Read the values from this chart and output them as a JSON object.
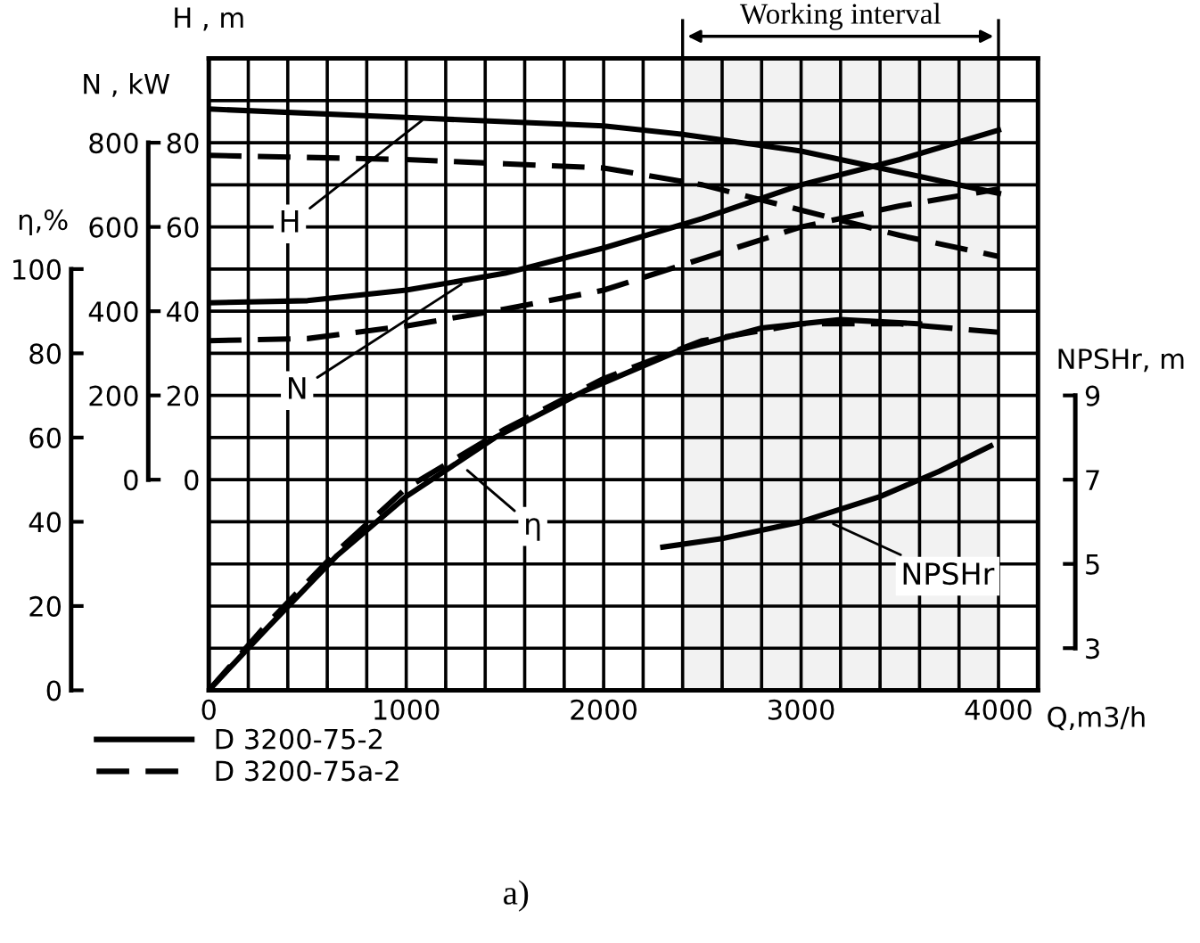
{
  "chart_data": [
    {
      "type": "line",
      "xlabel": "Q,m3/h",
      "ylabel": "H , m",
      "y2label": "N , kW",
      "y3label": "η,%",
      "xlim": [
        0,
        4200
      ],
      "xticks": [
        0,
        {
          "value": 200,
          "label": null
        },
        {
          "value": 400,
          "label": null
        },
        {
          "value": 600,
          "label": null
        },
        {
          "value": 800,
          "label": null
        },
        1000,
        {
          "value": 1200,
          "label": null
        },
        {
          "value": 1400,
          "label": null
        },
        {
          "value": 1600,
          "label": null
        },
        {
          "value": 1800,
          "label": null
        },
        2000,
        {
          "value": 2200,
          "label": null
        },
        {
          "value": 2400,
          "label": null
        },
        {
          "value": 2600,
          "label": null
        },
        {
          "value": 2800,
          "label": null
        },
        3000,
        {
          "value": 3200,
          "label": null
        },
        {
          "value": 3400,
          "label": null
        },
        {
          "value": 3600,
          "label": null
        },
        {
          "value": 3800,
          "label": null
        },
        4000
      ],
      "ylim": [
        -50,
        100
      ],
      "yticks": [
        {
          "value": -50,
          "label": null
        },
        {
          "value": -40,
          "label": null
        },
        {
          "value": -30,
          "label": null
        },
        {
          "value": -20,
          "label": null
        },
        {
          "value": -10,
          "label": null
        },
        0,
        {
          "value": 10,
          "label": null
        },
        20,
        {
          "value": 30,
          "label": null
        },
        40,
        {
          "value": 50,
          "label": null
        },
        60,
        {
          "value": 70,
          "label": null
        },
        80,
        {
          "value": 90,
          "label": null
        }
      ],
      "y2lim": [
        -500,
        1000
      ],
      "y2ticks": [
        0,
        200,
        400,
        600,
        800
      ],
      "y3lim": [
        0,
        150
      ],
      "y3ticks": [
        0,
        20,
        40,
        60,
        80,
        100
      ],
      "grid": true,
      "legend": "bottom left",
      "marker": "none",
      "series": [
        {
          "name": "D 3200-75-2",
          "color": "#000000",
          "line_style": "solid",
          "axis": "y",
          "x": [
            0,
            1000,
            2000,
            2400,
            3000,
            3500,
            4000
          ],
          "values": [
            88,
            86,
            84,
            82,
            78,
            73,
            68
          ]
        },
        {
          "name": "D 3200-75a-2",
          "color": "#000000",
          "line_style": "dashed",
          "axis": "y",
          "x": [
            0,
            1000,
            1500,
            2000,
            2500,
            3000,
            3500,
            4000
          ],
          "values": [
            77,
            76,
            75,
            74,
            70,
            64,
            58,
            53
          ]
        },
        {
          "color": "#000000",
          "line_style": "solid",
          "axis": "y2",
          "x": [
            0,
            500,
            1000,
            1500,
            2000,
            2500,
            3000,
            3500,
            4000
          ],
          "values": [
            420,
            425,
            450,
            490,
            550,
            620,
            700,
            760,
            830
          ]
        },
        {
          "color": "#000000",
          "line_style": "dashed",
          "axis": "y2",
          "x": [
            0,
            500,
            1000,
            1500,
            2000,
            2500,
            3000,
            3500,
            4000
          ],
          "values": [
            330,
            335,
            365,
            405,
            450,
            525,
            600,
            650,
            690
          ]
        },
        {
          "color": "#000000",
          "line_style": "solid",
          "axis": "y3",
          "x": [
            0,
            300,
            650,
            1000,
            1450,
            1900,
            2400,
            2800,
            3200,
            3600
          ],
          "values": [
            0,
            15,
            32,
            46,
            60,
            71,
            81,
            86,
            88,
            87
          ]
        },
        {
          "color": "#000000",
          "line_style": "dashed",
          "axis": "y3",
          "x": [
            0,
            300,
            650,
            1000,
            1500,
            2000,
            2500,
            3000,
            3500,
            4000
          ],
          "values": [
            0,
            16,
            33,
            48,
            62,
            74,
            83,
            87,
            87,
            85
          ]
        }
      ],
      "bands": [
        {
          "axis": "x",
          "from": 2400,
          "to": 4000,
          "label": "Working interval",
          "color": "#000000"
        }
      ],
      "annotations": [
        {
          "text": "H",
          "x": 1100,
          "y": 86
        },
        {
          "text": "N",
          "x": 1300,
          "y": 47
        },
        {
          "text": "η",
          "x": 1290,
          "y": 3
        },
        "a)"
      ]
    },
    {
      "type": "line",
      "ylabel": "NPSHr, m",
      "xlim": [
        0,
        4200
      ],
      "ylim": [
        2,
        17
      ],
      "yticks": [
        3,
        5,
        7,
        9
      ],
      "tick_labels": "y",
      "marker": "none",
      "series": [
        {
          "color": "#000000",
          "line_style": "solid",
          "x": [
            2300,
            2600,
            3000,
            3400,
            3700,
            3960
          ],
          "values": [
            5.4,
            5.6,
            6.0,
            6.6,
            7.2,
            7.8
          ]
        }
      ],
      "annotations": [
        {
          "text": "NPSHr",
          "x": 3140,
          "y": 6.0
        }
      ]
    }
  ]
}
